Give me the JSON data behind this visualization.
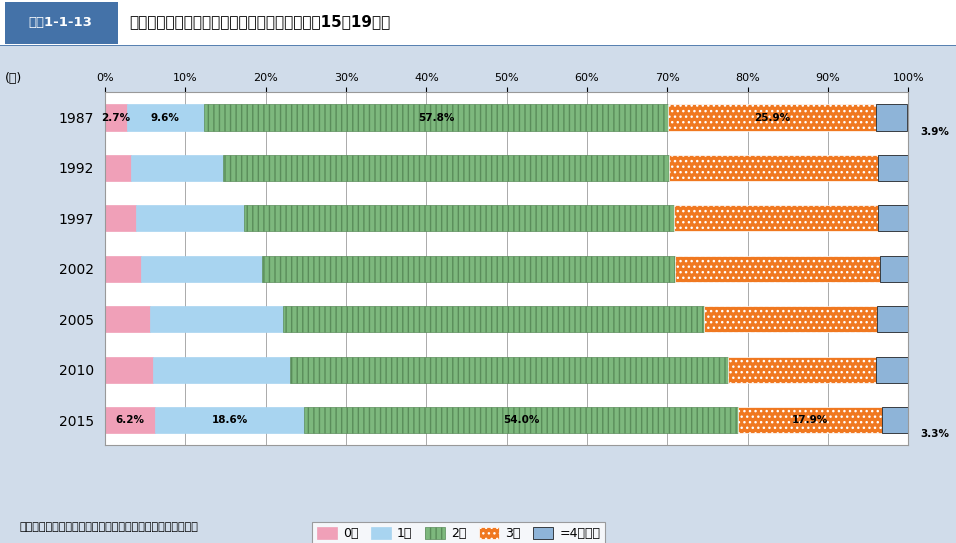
{
  "years": [
    "2015",
    "2010",
    "2005",
    "2002",
    "1997",
    "1992",
    "1987"
  ],
  "years_display": [
    "1987",
    "1992",
    "1997",
    "2002",
    "2005",
    "2010",
    "2015"
  ],
  "data": {
    "0nin": [
      6.2,
      6.0,
      5.6,
      4.5,
      3.8,
      3.2,
      2.7
    ],
    "1nin": [
      18.6,
      17.0,
      16.5,
      15.0,
      13.5,
      11.5,
      9.6
    ],
    "2nin": [
      54.0,
      54.5,
      52.5,
      51.5,
      53.5,
      55.5,
      57.8
    ],
    "3nin": [
      17.9,
      18.5,
      21.5,
      25.5,
      25.5,
      26.0,
      25.9
    ],
    "4nin": [
      3.3,
      4.0,
      3.9,
      3.5,
      3.7,
      3.8,
      3.9
    ]
  },
  "labels_shown": {
    "1987": {
      "0nin": "2.7%",
      "1nin": "9.6%",
      "2nin": "57.8%",
      "3nin": "25.9%"
    },
    "2015": {
      "0nin": "6.2%",
      "1nin": "18.6%",
      "2nin": "54.0%",
      "3nin": "17.9%"
    }
  },
  "outside_labels": {
    "1987": {
      "4nin": "3.9%"
    },
    "2015": {
      "4nin": "3.3%"
    }
  },
  "colors": {
    "0nin": "#F0A0B8",
    "1nin": "#A8D4F0",
    "2nin": "#7DB87D",
    "3nin": "#F07820",
    "4nin": "#8EB4D8"
  },
  "hatches": {
    "0nin": "",
    "1nin": "",
    "2nin": "|||",
    "3nin": "...",
    "4nin": "==="
  },
  "hatch_colors": {
    "0nin": "#F0A0B8",
    "1nin": "#A8D4F0",
    "2nin": "#5A8C5A",
    "3nin": "#ffffff",
    "4nin": "#000000"
  },
  "legend_labels": [
    "0人",
    "1人",
    "2人",
    "3人",
    "=4人以上"
  ],
  "title_text": "夢婦の出生子ども数分布の推移（結婚持続期閉15～19年）",
  "title_box": "図表1-1-13",
  "xlabel_year": "(年)",
  "note": "資料：国立社会保障・人口問顕研究所「出生動向基本調査」",
  "bg_color": "#D0DCEA",
  "plot_bg": "#FFFFFF",
  "header_bg": "#4472A8"
}
